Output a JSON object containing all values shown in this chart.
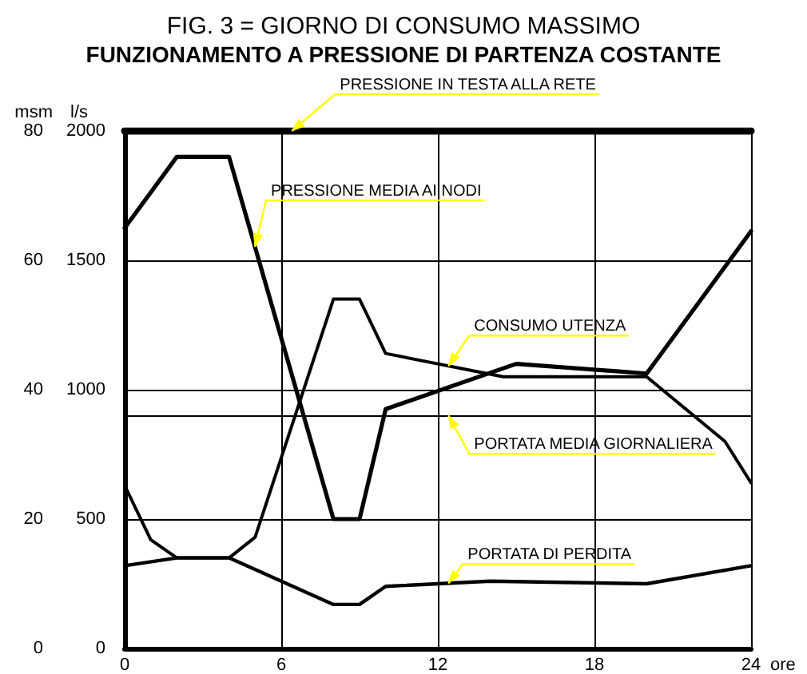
{
  "chart_data": {
    "type": "line",
    "title": "FIG. 3 = GIORNO DI CONSUMO MASSIMO",
    "subtitle": "FUNZIONAMENTO A PRESSIONE DI PARTENZA COSTANTE",
    "xlabel": "ore",
    "ylabel": "l/s",
    "y2label": "msm",
    "xlim": [
      0,
      24
    ],
    "xticks": [
      0,
      6,
      12,
      18,
      24
    ],
    "ylim": [
      0,
      2000
    ],
    "yticks": [
      0,
      500,
      1000,
      1500,
      2000
    ],
    "y2lim": [
      0,
      80
    ],
    "y2ticks": [
      0,
      20,
      40,
      60,
      80
    ],
    "grid": true,
    "legend": false,
    "marker": "none",
    "series": [
      {
        "name": "PRESSIONE IN TESTA ALLA RETE",
        "color": "#000000",
        "axis": "y2",
        "x": [
          0,
          24
        ],
        "values": [
          80,
          80
        ]
      },
      {
        "name": "PRESSIONE MEDIA AI NODI",
        "color": "#000000",
        "axis": "y2",
        "x": [
          0,
          2,
          4,
          8,
          9,
          10,
          15,
          20,
          24
        ],
        "values": [
          65,
          76,
          76,
          20,
          20,
          37,
          44,
          42.5,
          64.5
        ]
      },
      {
        "name": "CONSUMO UTENZA",
        "color": "#000000",
        "x": [
          0,
          1,
          2,
          4,
          5,
          8,
          9,
          10,
          14.5,
          20,
          23,
          24
        ],
        "values": [
          630,
          420,
          350,
          350,
          430,
          1350,
          1350,
          1140,
          1050,
          1050,
          800,
          640
        ]
      },
      {
        "name": "PORTATA DI PERDITA",
        "color": "#000000",
        "x": [
          0,
          2,
          4,
          8,
          9,
          10,
          14,
          20,
          24
        ],
        "values": [
          320,
          350,
          350,
          170,
          170,
          240,
          260,
          250,
          320
        ]
      }
    ],
    "ref_lines": [
      {
        "axis": "y",
        "value": 900,
        "label": "PORTATA MEDIA GIORNALIERA"
      }
    ]
  }
}
